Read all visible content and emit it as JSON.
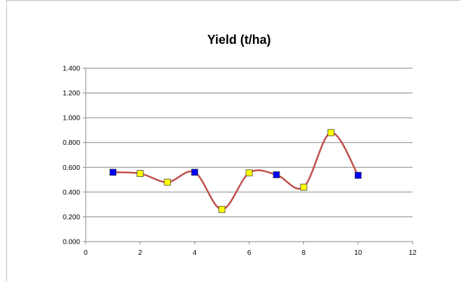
{
  "chart_data": {
    "type": "scatter",
    "title": "Yield (t/ha)",
    "xlabel": "",
    "ylabel": "",
    "xlim": [
      0,
      12
    ],
    "ylim": [
      0,
      1.4
    ],
    "x_ticks": [
      0,
      2,
      4,
      6,
      8,
      10,
      12
    ],
    "x_tick_labels": [
      "0",
      "2",
      "4",
      "6",
      "8",
      "10",
      "12"
    ],
    "y_ticks": [
      0,
      0.2,
      0.4,
      0.6,
      0.8,
      1.0,
      1.2,
      1.4
    ],
    "y_tick_labels": [
      "0.000",
      "0.200",
      "0.400",
      "0.600",
      "0.800",
      "1.000",
      "1.200",
      "1.400"
    ],
    "grid": "horizontal",
    "legend": "none",
    "line_style": "smooth",
    "line_color": "#c0504d",
    "marker_shape": "square",
    "series": [
      {
        "x": [
          1,
          2,
          3,
          4,
          5,
          6,
          7,
          8,
          9,
          10
        ],
        "values": [
          0.56,
          0.55,
          0.48,
          0.56,
          0.26,
          0.555,
          0.54,
          0.44,
          0.88,
          0.535
        ],
        "marker_colors": [
          "#0000ff",
          "#ffff00",
          "#ffff00",
          "#0000ff",
          "#ffff00",
          "#ffff00",
          "#0000ff",
          "#ffff00",
          "#ffff00",
          "#0000ff"
        ]
      }
    ]
  }
}
